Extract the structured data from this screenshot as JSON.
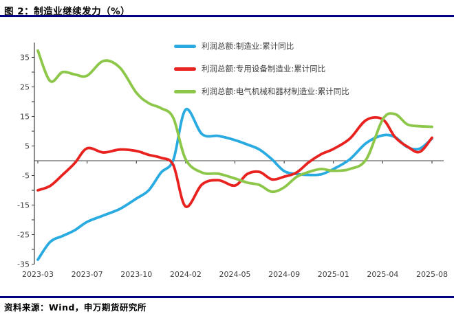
{
  "header": {
    "title": "图 2：制造业继续发力（%）"
  },
  "footer": {
    "source": "资料来源：Wind，申万期货研究所"
  },
  "accent": {
    "rule_color": "#000080",
    "axis_color": "#404040"
  },
  "chart_data": {
    "type": "line",
    "title": "图 2：制造业继续发力（%）",
    "xlabel": "",
    "ylabel": "%",
    "ylim": [
      -35,
      35
    ],
    "y_tick_labels": [
      35,
      25,
      15,
      5,
      -5,
      -15,
      -25,
      -35
    ],
    "y_minor_tick_step": 5,
    "grid": false,
    "zero_line": true,
    "legend_position": "top-center",
    "x_tick_labels": [
      "2023-03",
      "2023-07",
      "2023-10",
      "2024-02",
      "2024-05",
      "2024-09",
      "2025-01",
      "2025-04",
      "2025-08"
    ],
    "x": [
      "2023-03",
      "2023-04",
      "2023-05",
      "2023-06",
      "2023-07",
      "2023-08",
      "2023-09",
      "2023-10",
      "2023-11",
      "2023-12",
      "2024-01",
      "2024-02",
      "2024-03",
      "2024-04",
      "2024-05",
      "2024-06",
      "2024-07",
      "2024-08",
      "2024-09",
      "2024-10",
      "2024-11",
      "2024-12",
      "2025-01",
      "2025-02",
      "2025-03",
      "2025-04",
      "2025-05",
      "2025-06",
      "2025-07",
      "2025-08"
    ],
    "series": [
      {
        "name": "利润总额:制造业:累计同比",
        "color": "#29ABE2",
        "values": [
          -33.5,
          -27.5,
          -25.5,
          -23.5,
          -20.7,
          -18.5,
          -16.3,
          -12.8,
          -10.0,
          -4.0,
          0.3,
          17.3,
          9.0,
          8.4,
          7.0,
          5.5,
          3.8,
          0.5,
          -3.5,
          -4.5,
          -4.8,
          -4.6,
          -2.8,
          0.5,
          6.0,
          8.6,
          8.0,
          4.6,
          4.1,
          7.5
        ]
      },
      {
        "name": "利润总额:专用设备制造业:累计同比",
        "color": "#E8221E",
        "values": [
          -10.0,
          -8.5,
          -4.8,
          -0.8,
          4.2,
          2.8,
          3.8,
          3.3,
          2.0,
          1.0,
          -1.5,
          -15.5,
          -8.0,
          -6.6,
          -8.4,
          -4.5,
          -3.8,
          -6.3,
          -5.4,
          -4.0,
          -0.5,
          2.2,
          4.0,
          7.5,
          13.8,
          14.0,
          8.0,
          4.8,
          3.0,
          7.8
        ]
      },
      {
        "name": "利润总额:电气机械和器材制造业:累计同比",
        "color": "#8CC749",
        "values": [
          37.3,
          27.0,
          30.0,
          29.2,
          28.8,
          33.8,
          31.5,
          23.0,
          19.5,
          17.8,
          14.5,
          0.5,
          -4.0,
          -4.4,
          -6.0,
          -7.4,
          -8.2,
          -10.5,
          -9.0,
          -5.5,
          -3.8,
          -2.8,
          -3.4,
          -2.8,
          0.5,
          14.0,
          15.8,
          12.3,
          11.7,
          11.5
        ]
      }
    ]
  }
}
